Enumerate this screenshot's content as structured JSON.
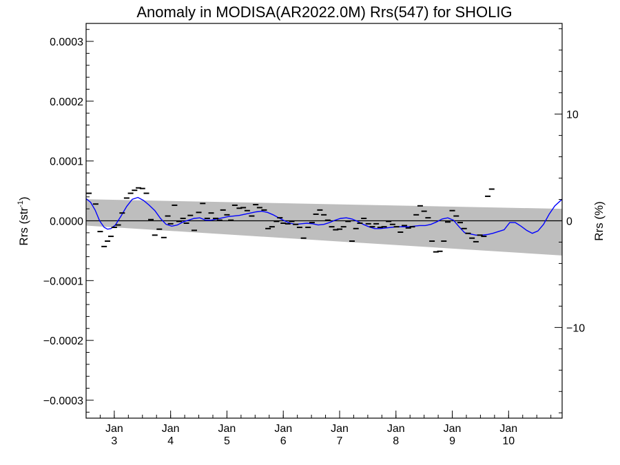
{
  "chart_data": {
    "type": "line",
    "title": "Anomaly in MODISA(AR2022.0M) Rrs(547) for SHOLIG",
    "ylabel": "Rrs (str",
    "ylabel_sup": "-1",
    "ylabel_tail": ")",
    "y2label": "Rrs (%)",
    "ylim": [
      -0.00033,
      0.00033
    ],
    "y2lim": [
      -18.5,
      18.5
    ],
    "xlim": [
      2.5,
      10.95
    ],
    "grid": false,
    "y_ticks": [
      {
        "v": 0.0003,
        "label": "0.0003"
      },
      {
        "v": 0.0002,
        "label": "0.0002"
      },
      {
        "v": 0.0001,
        "label": "0.0001"
      },
      {
        "v": 0.0,
        "label": "0.0000"
      },
      {
        "v": -0.0001,
        "label": "−0.0001"
      },
      {
        "v": -0.0002,
        "label": "−0.0002"
      },
      {
        "v": -0.0003,
        "label": "−0.0003"
      }
    ],
    "y2_ticks": [
      {
        "v": 10,
        "label": "10"
      },
      {
        "v": 0,
        "label": "0"
      },
      {
        "v": -10,
        "label": "−10"
      }
    ],
    "x_ticks": [
      {
        "v": 3,
        "month": "Jan",
        "day": "3"
      },
      {
        "v": 4,
        "month": "Jan",
        "day": "4"
      },
      {
        "v": 5,
        "month": "Jan",
        "day": "5"
      },
      {
        "v": 6,
        "month": "Jan",
        "day": "6"
      },
      {
        "v": 7,
        "month": "Jan",
        "day": "7"
      },
      {
        "v": 8,
        "month": "Jan",
        "day": "8"
      },
      {
        "v": 9,
        "month": "Jan",
        "day": "9"
      },
      {
        "v": 10,
        "month": "Jan",
        "day": "10"
      }
    ],
    "band": {
      "x": [
        2.5,
        10.95
      ],
      "upper": [
        3.6e-05,
        2e-05
      ],
      "lower": [
        -8e-06,
        -5.8e-05
      ],
      "color": "#bebebe"
    },
    "zero_line_color": "#000000",
    "points_color": "#000000",
    "points": [
      [
        2.55,
        4.6e-05
      ],
      [
        2.67,
        2.8e-05
      ],
      [
        2.75,
        -1.8e-05
      ],
      [
        2.82,
        -4.3e-05
      ],
      [
        2.88,
        -3.4e-05
      ],
      [
        2.94,
        -2.6e-05
      ],
      [
        3.0,
        -1.1e-05
      ],
      [
        3.07,
        -7e-06
      ],
      [
        3.14,
        1.3e-05
      ],
      [
        3.22,
        3.8e-05
      ],
      [
        3.29,
        4.6e-05
      ],
      [
        3.36,
        5.1e-05
      ],
      [
        3.43,
        5.5e-05
      ],
      [
        3.5,
        5.4e-05
      ],
      [
        3.57,
        4.6e-05
      ],
      [
        3.65,
        2e-06
      ],
      [
        3.72,
        -2.4e-05
      ],
      [
        3.8,
        -1.4e-05
      ],
      [
        3.88,
        -2.8e-05
      ],
      [
        3.95,
        8e-06
      ],
      [
        4.0,
        -5e-06
      ],
      [
        4.07,
        2.6e-05
      ],
      [
        4.15,
        -1e-06
      ],
      [
        4.22,
        4e-06
      ],
      [
        4.28,
        -4e-06
      ],
      [
        4.35,
        9e-06
      ],
      [
        4.42,
        -1.6e-05
      ],
      [
        4.5,
        1.4e-05
      ],
      [
        4.57,
        2.9e-05
      ],
      [
        4.65,
        4e-06
      ],
      [
        4.72,
        1.3e-05
      ],
      [
        4.8,
        4e-06
      ],
      [
        4.87,
        1e-06
      ],
      [
        4.93,
        1.8e-05
      ],
      [
        5.0,
        1e-05
      ],
      [
        5.07,
        1e-06
      ],
      [
        5.14,
        2.6e-05
      ],
      [
        5.22,
        2.1e-05
      ],
      [
        5.29,
        2.2e-05
      ],
      [
        5.36,
        1.7e-05
      ],
      [
        5.44,
        8e-06
      ],
      [
        5.51,
        2.7e-05
      ],
      [
        5.58,
        2.2e-05
      ],
      [
        5.66,
        1.8e-05
      ],
      [
        5.73,
        -1.3e-05
      ],
      [
        5.8,
        -1e-05
      ],
      [
        5.88,
        -1e-06
      ],
      [
        5.94,
        5e-06
      ],
      [
        6.0,
        -4e-06
      ],
      [
        6.08,
        -5e-06
      ],
      [
        6.15,
        -1e-06
      ],
      [
        6.22,
        -6e-06
      ],
      [
        6.29,
        -1.1e-05
      ],
      [
        6.36,
        -2.9e-05
      ],
      [
        6.44,
        -1.1e-05
      ],
      [
        6.51,
        -3e-06
      ],
      [
        6.58,
        1.1e-05
      ],
      [
        6.65,
        1.8e-05
      ],
      [
        6.72,
        1e-05
      ],
      [
        6.79,
        1e-06
      ],
      [
        6.86,
        -1e-05
      ],
      [
        6.93,
        -1.5e-05
      ],
      [
        7.0,
        -1.4e-05
      ],
      [
        7.07,
        -1e-05
      ],
      [
        7.15,
        -1e-06
      ],
      [
        7.22,
        -3.4e-05
      ],
      [
        7.29,
        -1.3e-05
      ],
      [
        7.36,
        -4e-06
      ],
      [
        7.43,
        4e-06
      ],
      [
        7.51,
        -5e-06
      ],
      [
        7.58,
        -1e-05
      ],
      [
        7.65,
        -5e-06
      ],
      [
        7.72,
        -1.1e-05
      ],
      [
        7.79,
        -1e-05
      ],
      [
        7.87,
        -1e-06
      ],
      [
        7.94,
        -6e-06
      ],
      [
        8.01,
        -1e-05
      ],
      [
        8.08,
        -1.9e-05
      ],
      [
        8.15,
        -8e-06
      ],
      [
        8.22,
        -1.2e-05
      ],
      [
        8.29,
        -1e-05
      ],
      [
        8.36,
        1e-05
      ],
      [
        8.43,
        2.5e-05
      ],
      [
        8.5,
        1.6e-05
      ],
      [
        8.57,
        5e-06
      ],
      [
        8.64,
        -3.4e-05
      ],
      [
        8.71,
        -5.2e-05
      ],
      [
        8.78,
        -5.1e-05
      ],
      [
        8.85,
        -3.4e-05
      ],
      [
        8.92,
        -2e-06
      ],
      [
        9.0,
        1.7e-05
      ],
      [
        9.07,
        8e-06
      ],
      [
        9.14,
        -3e-06
      ],
      [
        9.21,
        -1.3e-05
      ],
      [
        9.28,
        -2.1e-05
      ],
      [
        9.35,
        -2.9e-05
      ],
      [
        9.42,
        -3.5e-05
      ],
      [
        9.49,
        -2.4e-05
      ],
      [
        9.56,
        -2.6e-05
      ],
      [
        9.63,
        4.1e-05
      ],
      [
        9.7,
        5.3e-05
      ]
    ],
    "series": [
      {
        "color": "#0000ff",
        "x": [
          2.5,
          2.58,
          2.66,
          2.74,
          2.82,
          2.88,
          2.94,
          3.02,
          3.12,
          3.22,
          3.32,
          3.42,
          3.52,
          3.62,
          3.72,
          3.82,
          3.92,
          4.02,
          4.12,
          4.22,
          4.32,
          4.42,
          4.52,
          4.62,
          4.72,
          4.82,
          4.92,
          5.02,
          5.12,
          5.22,
          5.32,
          5.42,
          5.52,
          5.62,
          5.72,
          5.82,
          5.92,
          6.02,
          6.12,
          6.22,
          6.32,
          6.42,
          6.52,
          6.62,
          6.72,
          6.82,
          6.92,
          7.02,
          7.12,
          7.22,
          7.32,
          7.42,
          7.52,
          7.62,
          7.72,
          7.82,
          7.92,
          8.02,
          8.12,
          8.22,
          8.32,
          8.42,
          8.52,
          8.62,
          8.72,
          8.82,
          8.92,
          9.02,
          9.12,
          9.22,
          9.32,
          9.42,
          9.52,
          9.62,
          9.72,
          9.82,
          9.92,
          10.02,
          10.12,
          10.22,
          10.32,
          10.42,
          10.52,
          10.62,
          10.72,
          10.82,
          10.95
        ],
        "y": [
          3.7e-05,
          3.1e-05,
          1.8e-05,
          0.0,
          -1.1e-05,
          -1.4e-05,
          -1.3e-05,
          -7e-06,
          8e-06,
          2.4e-05,
          3.6e-05,
          3.9e-05,
          3.4e-05,
          2.6e-05,
          1.7e-05,
          4e-06,
          -6e-06,
          -9e-06,
          -7e-06,
          -2e-06,
          1e-06,
          4e-06,
          5e-06,
          1e-06,
          1e-06,
          3e-06,
          5e-06,
          7e-06,
          8e-06,
          9e-06,
          1.1e-05,
          1.3e-05,
          1.5e-05,
          1.6e-05,
          1.4e-05,
          1e-05,
          5e-06,
          0.0,
          -4e-06,
          -6e-06,
          -5e-06,
          -4e-06,
          -5e-06,
          -7e-06,
          -6e-06,
          -3e-06,
          1e-06,
          4e-06,
          5e-06,
          3e-06,
          -1e-06,
          -6e-06,
          -1e-05,
          -1.3e-05,
          -1.3e-05,
          -1.2e-05,
          -1.1e-05,
          -1e-05,
          -1e-05,
          -1e-05,
          -9e-06,
          -8e-06,
          -8e-06,
          -6e-06,
          -2e-06,
          3e-06,
          5e-06,
          1e-06,
          -1e-05,
          -2e-05,
          -2.2e-05,
          -2.4e-05,
          -2.4e-05,
          -2.3e-05,
          -2.1e-05,
          -1.8e-05,
          -1.5e-05,
          -3e-06,
          -3e-06,
          -9e-06,
          -1.6e-05,
          -2.1e-05,
          -1.7e-05,
          -6e-06,
          1.1e-05,
          2.5e-05,
          3.6e-05
        ]
      }
    ]
  }
}
